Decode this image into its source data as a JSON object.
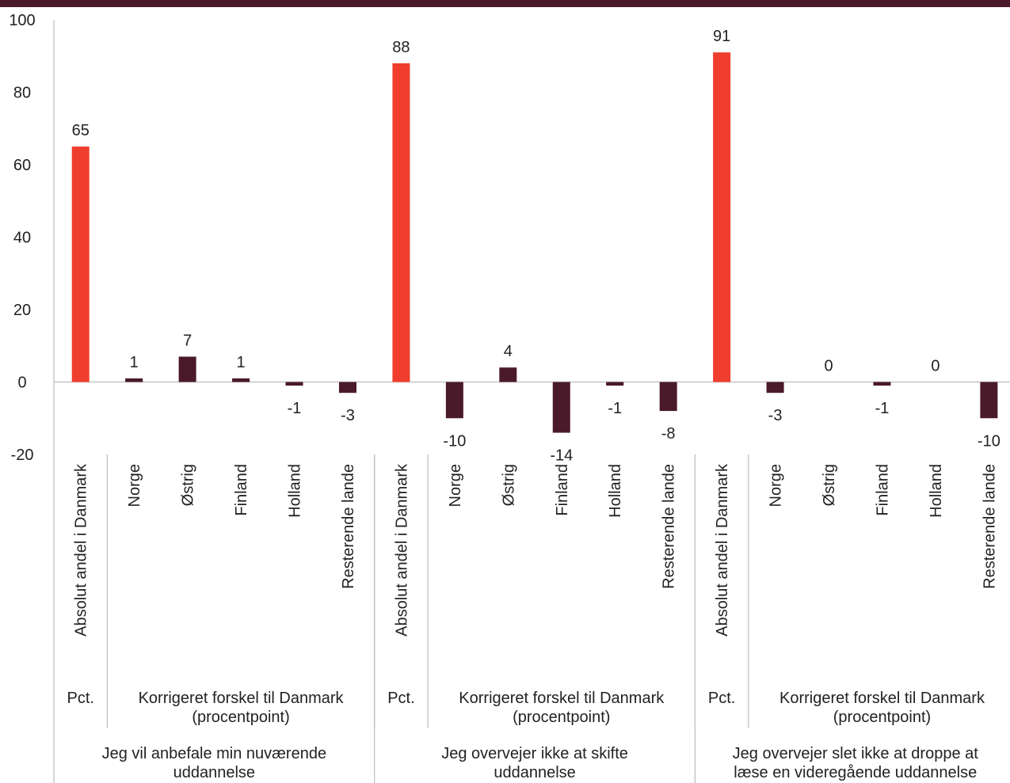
{
  "chart_data": {
    "type": "bar",
    "title": "",
    "xlabel": "",
    "ylabel": "",
    "ylim": [
      -20,
      100
    ],
    "yticks": [
      -20,
      0,
      20,
      40,
      60,
      80,
      100
    ],
    "grid": false,
    "legend": "none",
    "colors": {
      "absolute": "#ef3e2d",
      "difference": "#4b1a2a"
    },
    "groups": [
      {
        "label": "Jeg vil anbefale min nuværende uddannelse",
        "label_lines": [
          "Jeg vil anbefale min nuværende",
          "uddannelse"
        ],
        "subgroups": [
          {
            "label": "Pct.",
            "label_lines": [
              "Pct."
            ],
            "categories": [
              "Absolut andel i Danmark"
            ],
            "values": [
              65
            ]
          },
          {
            "label": "Korrigeret forskel til Danmark (procentpoint)",
            "label_lines": [
              "Korrigeret forskel til Danmark",
              "(procentpoint)"
            ],
            "categories": [
              "Norge",
              "Østrig",
              "Finland",
              "Holland",
              "Resterende lande"
            ],
            "values": [
              1,
              7,
              1,
              -1,
              -3
            ]
          }
        ]
      },
      {
        "label": "Jeg overvejer ikke at skifte uddannelse",
        "label_lines": [
          "Jeg overvejer ikke at skifte",
          "uddannelse"
        ],
        "subgroups": [
          {
            "label": "Pct.",
            "label_lines": [
              "Pct."
            ],
            "categories": [
              "Absolut andel i Danmark"
            ],
            "values": [
              88
            ]
          },
          {
            "label": "Korrigeret forskel til Danmark (procentpoint)",
            "label_lines": [
              "Korrigeret forskel til Danmark",
              "(procentpoint)"
            ],
            "categories": [
              "Norge",
              "Østrig",
              "Finland",
              "Holland",
              "Resterende lande"
            ],
            "values": [
              -10,
              4,
              -14,
              -1,
              -8
            ]
          }
        ]
      },
      {
        "label": "Jeg overvejer slet ikke at droppe at læse en videregående uddannelse",
        "label_lines": [
          "Jeg overvejer slet ikke at droppe at",
          "læse en videregående uddannelse"
        ],
        "subgroups": [
          {
            "label": "Pct.",
            "label_lines": [
              "Pct."
            ],
            "categories": [
              "Absolut andel i Danmark"
            ],
            "values": [
              91
            ]
          },
          {
            "label": "Korrigeret forskel til Danmark (procentpoint)",
            "label_lines": [
              "Korrigeret forskel til Danmark",
              "(procentpoint)"
            ],
            "categories": [
              "Norge",
              "Østrig",
              "Finland",
              "Holland",
              "Resterende lande"
            ],
            "values": [
              -3,
              0,
              -1,
              0,
              -10
            ]
          }
        ]
      }
    ]
  }
}
